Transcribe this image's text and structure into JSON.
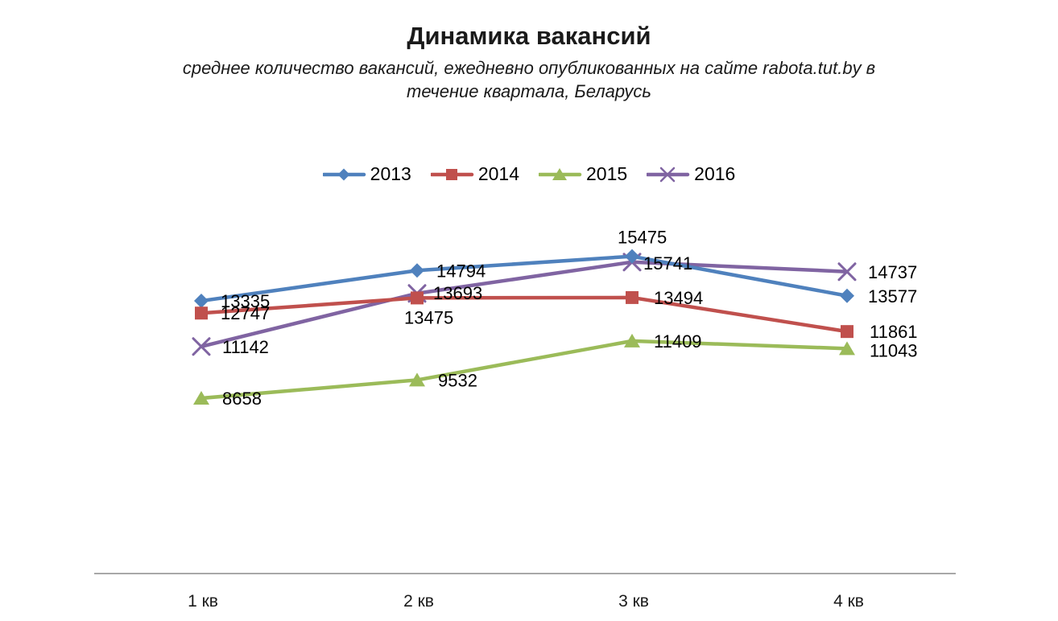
{
  "chart_data": {
    "type": "line",
    "title": "Динамика вакансий",
    "subtitle": "среднее количество вакансий, ежедневно опубликованных на сайте rabota.tut.by в\nтечение квартала, Беларусь",
    "categories": [
      "1 кв",
      "2 кв",
      "3 кв",
      "4 кв"
    ],
    "series": [
      {
        "name": "2013",
        "color": "#4F81BD",
        "marker": "diamond",
        "values": [
          13335,
          14794,
          15475,
          13577
        ],
        "label_offsets": [
          [
            24,
            8
          ],
          [
            24,
            8
          ],
          [
            -18,
            -16
          ],
          [
            26,
            8
          ]
        ]
      },
      {
        "name": "2014",
        "color": "#C0504D",
        "marker": "square",
        "values": [
          12747,
          13475,
          13494,
          11861
        ],
        "label_offsets": [
          [
            24,
            8
          ],
          [
            -16,
            32
          ],
          [
            27,
            8
          ],
          [
            28,
            8
          ]
        ]
      },
      {
        "name": "2015",
        "color": "#9BBB59",
        "marker": "triangle",
        "values": [
          8658,
          9532,
          11409,
          11043
        ],
        "label_offsets": [
          [
            26,
            8
          ],
          [
            26,
            8
          ],
          [
            27,
            8
          ],
          [
            28,
            10
          ]
        ]
      },
      {
        "name": "2016",
        "color": "#8064A2",
        "marker": "x",
        "values": [
          11142,
          13693,
          15741,
          14737
        ],
        "label_offsets": [
          [
            26,
            8
          ],
          [
            20,
            7
          ],
          [
            14,
            9
          ],
          [
            26,
            8
          ]
        ]
      }
    ],
    "legend_position": "top-center",
    "grid": false,
    "y_axis_visible": false,
    "ylim": [
      0,
      18000
    ],
    "axis_color": "#8C8C8C",
    "tick_color": "#1a1a1a",
    "data_label_color": "#000000"
  }
}
